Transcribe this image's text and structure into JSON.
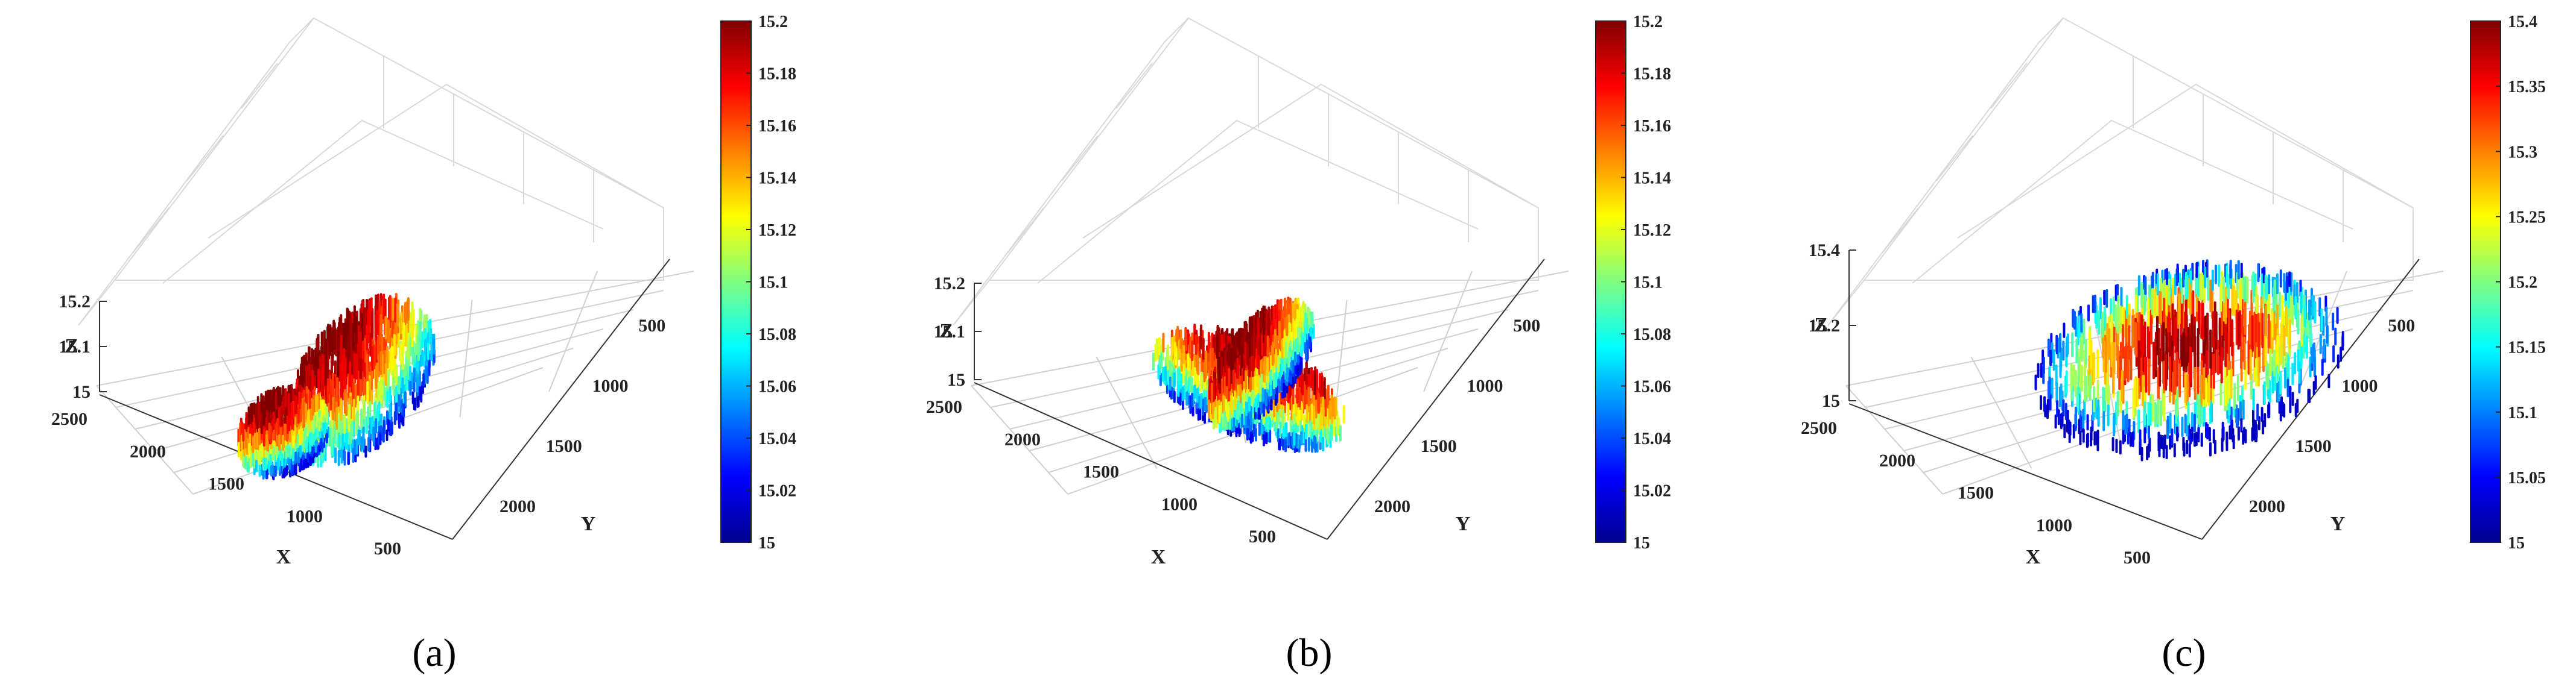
{
  "chart_data": [
    {
      "panel": "a",
      "type": "surface3d",
      "caption": "(a)",
      "xlabel": "X",
      "ylabel": "Y",
      "zlabel": "Z",
      "x_ticks": [
        "2500",
        "2000",
        "1500",
        "1000",
        "500"
      ],
      "y_ticks": [
        "500",
        "1000",
        "1500",
        "2000"
      ],
      "z_ticks": [
        "15",
        "15.1",
        "15.2"
      ],
      "zlim": [
        15,
        15.2
      ],
      "colorbar": {
        "colormap": "jet",
        "range": [
          15,
          15.2
        ],
        "ticks": [
          "15",
          "15.02",
          "15.04",
          "15.06",
          "15.08",
          "15.1",
          "15.12",
          "15.14",
          "15.16",
          "15.18",
          "15.2"
        ]
      },
      "grid": true
    },
    {
      "panel": "b",
      "type": "surface3d",
      "caption": "(b)",
      "xlabel": "X",
      "ylabel": "Y",
      "zlabel": "Z",
      "x_ticks": [
        "2500",
        "2000",
        "1500",
        "1000",
        "500"
      ],
      "y_ticks": [
        "500",
        "1000",
        "1500",
        "2000"
      ],
      "z_ticks": [
        "15",
        "15.1",
        "15.2"
      ],
      "zlim": [
        15,
        15.2
      ],
      "colorbar": {
        "colormap": "jet",
        "range": [
          15,
          15.2
        ],
        "ticks": [
          "15",
          "15.02",
          "15.04",
          "15.06",
          "15.08",
          "15.1",
          "15.12",
          "15.14",
          "15.16",
          "15.18",
          "15.2"
        ]
      },
      "grid": true
    },
    {
      "panel": "c",
      "type": "surface3d",
      "caption": "(c)",
      "xlabel": "X",
      "ylabel": "Y",
      "zlabel": "Z",
      "x_ticks": [
        "2500",
        "2000",
        "1500",
        "1000",
        "500"
      ],
      "y_ticks": [
        "500",
        "1000",
        "1500",
        "2000"
      ],
      "z_ticks": [
        "15",
        "15.2",
        "15.4"
      ],
      "zlim": [
        15,
        15.4
      ],
      "colorbar": {
        "colormap": "jet",
        "range": [
          15,
          15.4
        ],
        "ticks": [
          "15",
          "15.05",
          "15.1",
          "15.15",
          "15.2",
          "15.25",
          "15.3",
          "15.35",
          "15.4"
        ]
      },
      "grid": true
    }
  ]
}
